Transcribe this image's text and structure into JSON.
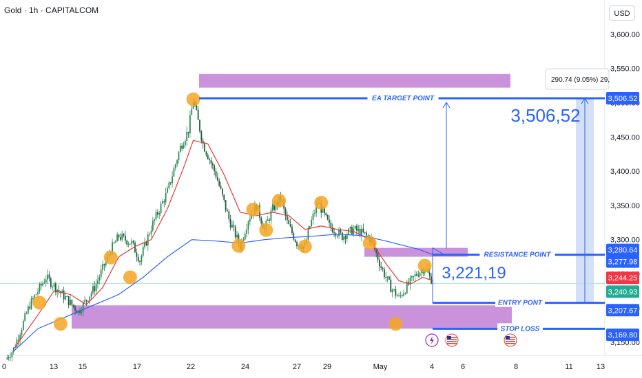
{
  "header": {
    "symbol_title": "Gold · 1h · CAPITALCOM",
    "currency": "USD"
  },
  "colors": {
    "candle_up": "#2e8b57",
    "candle_down": "#2e8b57",
    "ema_fast": "#e53935",
    "ema_slow": "#2962ff",
    "zone": "#c27fd6",
    "level_line": "#2962ff",
    "marker": "#f5a623",
    "badge_blue": "#2962ff",
    "badge_red": "#f23645",
    "badge_green": "#22ab94",
    "projection": "#c9d7f6"
  },
  "chart_data": {
    "type": "candlestick",
    "title": "Gold · 1h · CAPITALCOM",
    "x_ticks": [
      "0",
      "13",
      "15",
      "17",
      "22",
      "24",
      "27",
      "29",
      "May",
      "4",
      "6",
      "8",
      "11",
      "13"
    ],
    "y_ticks": [
      3150,
      3200,
      3250,
      3300,
      3350,
      3400,
      3450,
      3500,
      3550,
      3600
    ],
    "y_tick_labels": [
      "3,150.00",
      "3,200.00",
      "3,250.00",
      "3,300.00",
      "3,350.00",
      "3,400.00",
      "3,450.00",
      "3,500.00",
      "3,550.00",
      "3,600.00"
    ],
    "ylim": [
      3125,
      3630
    ],
    "price_path": [
      [
        0,
        3125
      ],
      [
        0.5,
        3140
      ],
      [
        1.5,
        3205
      ],
      [
        2.5,
        3245
      ],
      [
        3.5,
        3220
      ],
      [
        4.5,
        3195
      ],
      [
        5.5,
        3230
      ],
      [
        6.5,
        3285
      ],
      [
        7,
        3305
      ],
      [
        7.8,
        3295
      ],
      [
        8.3,
        3270
      ],
      [
        9,
        3318
      ],
      [
        10,
        3370
      ],
      [
        10.8,
        3435
      ],
      [
        11.3,
        3460
      ],
      [
        11.6,
        3505
      ],
      [
        12.2,
        3440
      ],
      [
        13,
        3395
      ],
      [
        13.8,
        3330
      ],
      [
        14.5,
        3290
      ],
      [
        15,
        3330
      ],
      [
        15.5,
        3350
      ],
      [
        16,
        3315
      ],
      [
        16.5,
        3345
      ],
      [
        17,
        3360
      ],
      [
        17.4,
        3325
      ],
      [
        18,
        3295
      ],
      [
        18.5,
        3290
      ],
      [
        18.8,
        3320
      ],
      [
        19.3,
        3355
      ],
      [
        20,
        3320
      ],
      [
        20.8,
        3305
      ],
      [
        21.5,
        3315
      ],
      [
        22,
        3310
      ],
      [
        22.6,
        3300
      ],
      [
        23.2,
        3260
      ],
      [
        23.8,
        3230
      ],
      [
        24.3,
        3215
      ],
      [
        24.9,
        3235
      ],
      [
        25.4,
        3250
      ],
      [
        25.9,
        3260
      ],
      [
        26.2,
        3245
      ],
      [
        26.4,
        3240
      ]
    ],
    "ema_fast": [
      [
        0.5,
        3140
      ],
      [
        2,
        3190
      ],
      [
        3,
        3225
      ],
      [
        4,
        3220
      ],
      [
        5,
        3205
      ],
      [
        6,
        3230
      ],
      [
        7,
        3275
      ],
      [
        8,
        3290
      ],
      [
        9,
        3300
      ],
      [
        10,
        3345
      ],
      [
        11,
        3405
      ],
      [
        11.6,
        3445
      ],
      [
        12.5,
        3440
      ],
      [
        13.5,
        3395
      ],
      [
        14.5,
        3340
      ],
      [
        15.5,
        3335
      ],
      [
        16.5,
        3340
      ],
      [
        17.5,
        3335
      ],
      [
        18.5,
        3315
      ],
      [
        19.5,
        3320
      ],
      [
        20.5,
        3315
      ],
      [
        21.5,
        3312
      ],
      [
        22.5,
        3300
      ],
      [
        23.5,
        3265
      ],
      [
        24.3,
        3240
      ],
      [
        25,
        3235
      ],
      [
        25.8,
        3245
      ],
      [
        26.4,
        3240
      ]
    ],
    "ema_slow": [
      [
        0.5,
        3137
      ],
      [
        2,
        3170
      ],
      [
        4,
        3190
      ],
      [
        5.5,
        3205
      ],
      [
        7,
        3220
      ],
      [
        8.5,
        3245
      ],
      [
        10,
        3275
      ],
      [
        11.5,
        3300
      ],
      [
        13,
        3298
      ],
      [
        14.5,
        3295
      ],
      [
        16,
        3300
      ],
      [
        17.5,
        3303
      ],
      [
        19,
        3305
      ],
      [
        20.5,
        3308
      ],
      [
        22,
        3306
      ],
      [
        23.5,
        3298
      ],
      [
        24.5,
        3292
      ],
      [
        25.5,
        3286
      ],
      [
        26.4,
        3278
      ]
    ],
    "swing_markers": [
      [
        2.1,
        3208
      ],
      [
        3.4,
        3177
      ],
      [
        6.5,
        3274
      ],
      [
        7.7,
        3245
      ],
      [
        11.6,
        3505
      ],
      [
        14.4,
        3291
      ],
      [
        15.3,
        3344
      ],
      [
        16.1,
        3314
      ],
      [
        16.9,
        3357
      ],
      [
        18.5,
        3290
      ],
      [
        19.5,
        3354
      ],
      [
        22.5,
        3295
      ],
      [
        24.1,
        3177
      ],
      [
        25.9,
        3262
      ]
    ],
    "zones": [
      {
        "name": "top-zone",
        "x": [
          6.1,
          15.6
        ],
        "y": [
          3522,
          3542
        ]
      },
      {
        "name": "resistance-zone",
        "x": [
          11.3,
          14.3
        ],
        "y": [
          3275,
          3288
        ]
      },
      {
        "name": "support-zone",
        "x": [
          2.2,
          15.6
        ],
        "y": [
          3170,
          3204
        ]
      }
    ],
    "levels": [
      {
        "name": "EA TARGET POINT",
        "price": 3506.52,
        "label": "EA TARGET POINT"
      },
      {
        "name": "RESISTANCE POINT",
        "price": 3277.98,
        "label": "RESISTANCE POINT"
      },
      {
        "name": "ENTRY POINT",
        "price": 3207.67,
        "label": "ENTRY PONT"
      },
      {
        "name": "STOP LOSS",
        "price": 3169.8,
        "label": "STOP LOSS"
      }
    ],
    "annotations": {
      "target_value": "3,506,52",
      "entry_value": "3,221,19",
      "measure_text": "290.74 (9.05%) 29,"
    },
    "price_badges": [
      {
        "text": "3,506.52",
        "price": 3506.52,
        "color": "#2962ff"
      },
      {
        "text": "3,280.64",
        "price": 3285,
        "color": "#2962ff"
      },
      {
        "text": "3,277.98",
        "price": 3268,
        "color": "#2962ff"
      },
      {
        "text": "3,244.25",
        "price": 3244.25,
        "color": "#f23645"
      },
      {
        "text": "3,240.93",
        "price": 3224,
        "color": "#22ab94"
      },
      {
        "text": "3,207.67",
        "price": 3197,
        "color": "#2962ff"
      },
      {
        "text": "3,169.80",
        "price": 3161,
        "color": "#2962ff"
      }
    ],
    "events": [
      "flash-event",
      "us-flag-event",
      "us-flag-event"
    ]
  }
}
